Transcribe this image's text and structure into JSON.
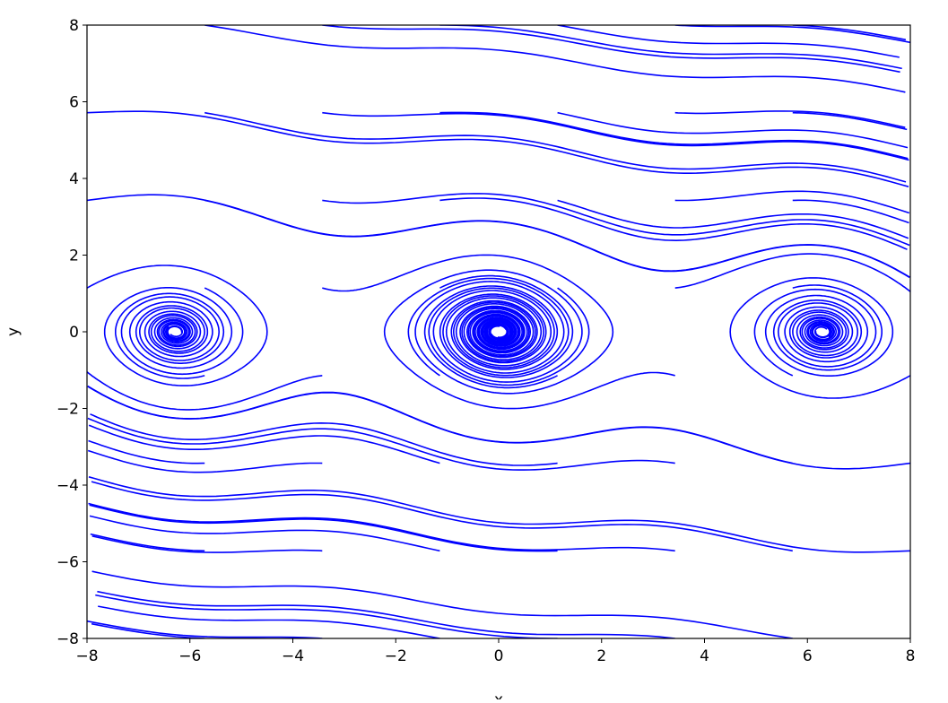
{
  "chart_data": {
    "type": "line",
    "title": "",
    "xlabel": "x",
    "ylabel": "y",
    "xlim": [
      -8,
      8
    ],
    "ylim": [
      -8,
      8
    ],
    "xticks": [
      -8,
      -6,
      -4,
      -2,
      0,
      2,
      4,
      6,
      8
    ],
    "yticks": [
      -8,
      -6,
      -4,
      -2,
      0,
      2,
      4,
      6,
      8
    ],
    "xtick_labels": [
      "−8",
      "−6",
      "−4",
      "−2",
      "0",
      "2",
      "4",
      "6",
      "8"
    ],
    "ytick_labels": [
      "−8",
      "−6",
      "−4",
      "−2",
      "0",
      "2",
      "4",
      "6",
      "8"
    ],
    "grid": false,
    "legend": "none",
    "line_color": "#0000ff",
    "series_description": "trajectories spiralling into centers near x = -2π, 0, 2π at y = 0",
    "initial_points_x": [
      -8,
      -5.714,
      -3.429,
      -1.143,
      1.143,
      3.429,
      5.714,
      8
    ],
    "initial_points_y": [
      -8,
      -5.714,
      -3.429,
      -1.143,
      1.143,
      3.429,
      5.714,
      8
    ]
  }
}
